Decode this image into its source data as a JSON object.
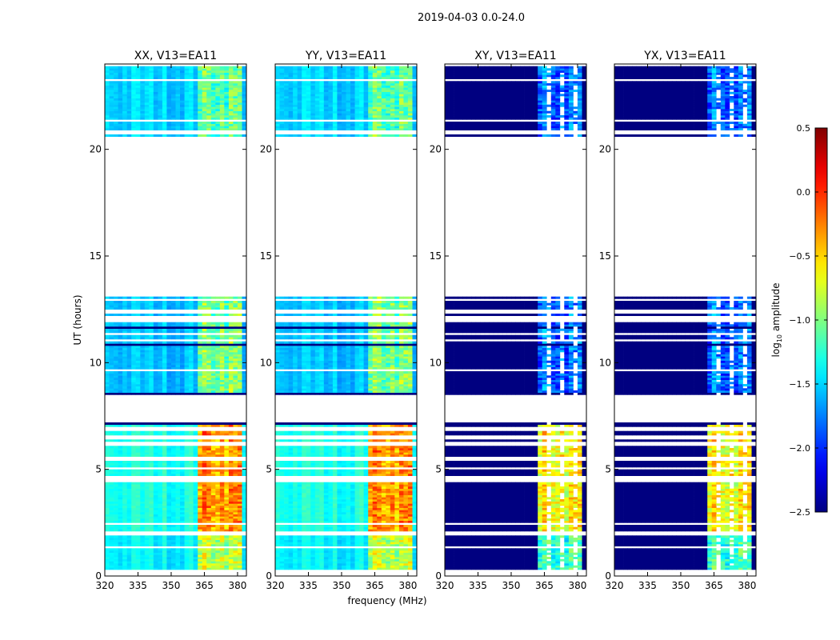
{
  "chart_data": {
    "type": "heatmap",
    "suptitle": "2019-04-03 0.0-24.0",
    "xlabel": "frequency (MHz)",
    "ylabel": "UT (hours)",
    "xlim": [
      320,
      384
    ],
    "ylim": [
      0,
      24
    ],
    "xticks": [
      "320",
      "335",
      "350",
      "365",
      "380"
    ],
    "xtick_values": [
      320,
      335,
      350,
      365,
      380
    ],
    "yticks": [
      "0",
      "5",
      "10",
      "15",
      "20"
    ],
    "ytick_values": [
      0,
      5,
      10,
      15,
      20
    ],
    "rfi_band_mhz": [
      362,
      382
    ],
    "time_segments_hours": [
      [
        0.2,
        2.0
      ],
      [
        2.1,
        7.4
      ],
      [
        8.5,
        13.2
      ],
      [
        20.6,
        23.9
      ]
    ],
    "panels": [
      {
        "title": "XX, V13=EA11",
        "segment_values": [
          [
            -1.4,
            -0.8
          ],
          [
            -1.3,
            -0.3
          ],
          [
            -1.55,
            -1.0
          ],
          [
            -1.5,
            -1.1
          ]
        ]
      },
      {
        "title": "YY, V13=EA11",
        "segment_values": [
          [
            -1.4,
            -0.8
          ],
          [
            -1.3,
            -0.3
          ],
          [
            -1.55,
            -1.0
          ],
          [
            -1.5,
            -1.1
          ]
        ]
      },
      {
        "title": "XY, V13=EA11",
        "segment_values": [
          [
            -2.5,
            -1.2
          ],
          [
            -2.5,
            -0.6
          ],
          [
            -2.5,
            -1.8
          ],
          [
            -2.5,
            -1.8
          ]
        ]
      },
      {
        "title": "YX, V13=EA11",
        "segment_values": [
          [
            -2.5,
            -1.2
          ],
          [
            -2.5,
            -0.6
          ],
          [
            -2.5,
            -1.8
          ],
          [
            -2.5,
            -1.8
          ]
        ]
      }
    ],
    "colorbar": {
      "label": "log10 amplitude",
      "label_main": "log",
      "label_sub": "10",
      "label_rest": " amplitude",
      "range": [
        -2.5,
        0.5
      ],
      "ticks": [
        "0.5",
        "0.0",
        "−0.5",
        "−1.0",
        "−1.5",
        "−2.0",
        "−2.5"
      ],
      "tick_values": [
        0.5,
        0.0,
        -0.5,
        -1.0,
        -1.5,
        -2.0,
        -2.5
      ],
      "colormap": "jet"
    }
  }
}
